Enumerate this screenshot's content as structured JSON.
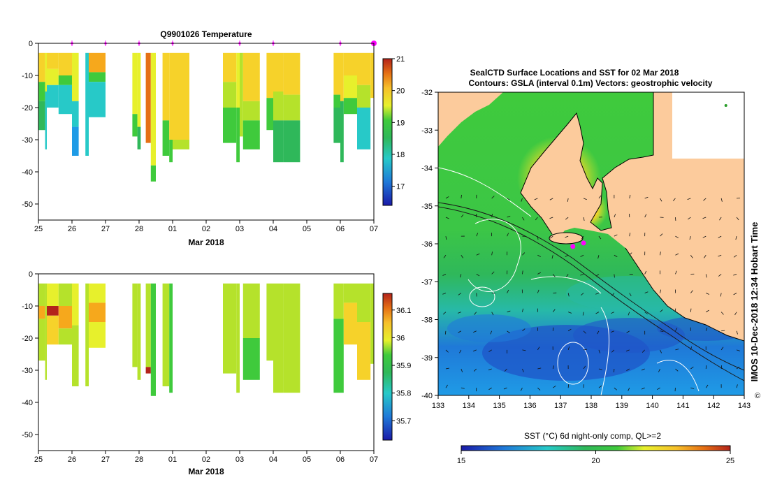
{
  "colors": {
    "land": "#fccb9c",
    "frame": "#000000",
    "marker": "#ff00ff",
    "colormap": [
      "#1a1aa8",
      "#1f55c8",
      "#1f9be6",
      "#27c9c8",
      "#2fb85a",
      "#3fca3c",
      "#b5e22b",
      "#e7f02c",
      "#f6d22a",
      "#f6a81c",
      "#e57014",
      "#b3231b"
    ]
  },
  "chart_data": [
    {
      "id": "temperature-section",
      "type": "heatmap",
      "title": "Q9901026  Temperature",
      "xlabel": "Mar 2018",
      "ylabel": "",
      "x_ticks": [
        "25",
        "26",
        "27",
        "28",
        "01",
        "02",
        "03",
        "04",
        "05",
        "06",
        "07"
      ],
      "x_range": [
        25,
        35
      ],
      "y_ticks": [
        "0",
        "-10",
        "-20",
        "-30",
        "-40",
        "-50"
      ],
      "ylim": [
        -55,
        0
      ],
      "profile_markers_day": [
        26,
        27,
        28,
        29,
        31,
        32,
        34,
        35
      ],
      "colorbar": {
        "ticks": [
          "17",
          "18",
          "19",
          "20",
          "21"
        ],
        "range": [
          16.4,
          21
        ]
      },
      "profiles": [
        {
          "x0": 25.0,
          "x1": 25.2,
          "bottom": -27,
          "layers": [
            [
              -3,
              -12,
              19.6
            ],
            [
              -12,
              -18,
              18.4
            ],
            [
              -18,
              -27,
              18.1
            ]
          ]
        },
        {
          "x0": 25.2,
          "x1": 25.25,
          "bottom": -33,
          "layers": [
            [
              -3,
              -15,
              19.3
            ],
            [
              -15,
              -33,
              17.8
            ]
          ]
        },
        {
          "x0": 25.25,
          "x1": 25.6,
          "bottom": -20,
          "layers": [
            [
              -3,
              -8,
              19.8
            ],
            [
              -8,
              -13,
              19.2
            ],
            [
              -13,
              -20,
              17.6
            ]
          ]
        },
        {
          "x0": 25.6,
          "x1": 26.0,
          "bottom": -22,
          "layers": [
            [
              -3,
              -10,
              19.7
            ],
            [
              -10,
              -13,
              18.4
            ],
            [
              -13,
              -22,
              17.5
            ]
          ]
        },
        {
          "x0": 26.0,
          "x1": 26.2,
          "bottom": -35,
          "layers": [
            [
              -3,
              -18,
              19.2
            ],
            [
              -18,
              -26,
              17.6
            ],
            [
              -26,
              -35,
              17.4
            ]
          ]
        },
        {
          "x0": 26.4,
          "x1": 26.5,
          "bottom": -35,
          "layers": [
            [
              -3,
              -35,
              17.6
            ]
          ]
        },
        {
          "x0": 26.5,
          "x1": 27.0,
          "bottom": -23,
          "layers": [
            [
              -3,
              -9,
              20.2
            ],
            [
              -9,
              -12,
              18.6
            ],
            [
              -12,
              -23,
              17.8
            ]
          ]
        },
        {
          "x0": 27.8,
          "x1": 27.95,
          "bottom": -29,
          "layers": [
            [
              -3,
              -22,
              19.3
            ],
            [
              -22,
              -29,
              18.4
            ]
          ]
        },
        {
          "x0": 27.95,
          "x1": 28.05,
          "bottom": -33,
          "layers": [
            [
              -3,
              -26,
              19.5
            ],
            [
              -26,
              -33,
              18.2
            ]
          ]
        },
        {
          "x0": 28.2,
          "x1": 28.35,
          "bottom": -31,
          "layers": [
            [
              -3,
              -31,
              20.6
            ]
          ]
        },
        {
          "x0": 28.35,
          "x1": 28.5,
          "bottom": -43,
          "layers": [
            [
              -3,
              -38,
              19.4
            ],
            [
              -38,
              -43,
              18.3
            ]
          ]
        },
        {
          "x0": 28.7,
          "x1": 28.9,
          "bottom": -35,
          "layers": [
            [
              -3,
              -24,
              19.9
            ],
            [
              -24,
              -35,
              18.4
            ]
          ]
        },
        {
          "x0": 28.9,
          "x1": 29.0,
          "bottom": -37,
          "layers": [
            [
              -3,
              -30,
              19.8
            ],
            [
              -30,
              -37,
              18.6
            ]
          ]
        },
        {
          "x0": 29.0,
          "x1": 29.5,
          "bottom": -33,
          "layers": [
            [
              -3,
              -30,
              19.8
            ],
            [
              -30,
              -33,
              18.8
            ]
          ]
        },
        {
          "x0": 30.5,
          "x1": 30.9,
          "bottom": -31,
          "layers": [
            [
              -3,
              -12,
              19.8
            ],
            [
              -12,
              -20,
              19.0
            ],
            [
              -20,
              -31,
              18.5
            ]
          ]
        },
        {
          "x0": 30.9,
          "x1": 31.0,
          "bottom": -37,
          "layers": [
            [
              -3,
              -20,
              19.4
            ],
            [
              -20,
              -37,
              18.3
            ]
          ]
        },
        {
          "x0": 31.0,
          "x1": 31.1,
          "bottom": -29,
          "layers": [
            [
              -3,
              -29,
              18.8
            ]
          ]
        },
        {
          "x0": 31.1,
          "x1": 31.6,
          "bottom": -33,
          "layers": [
            [
              -3,
              -18,
              19.9
            ],
            [
              -18,
              -24,
              18.8
            ],
            [
              -24,
              -33,
              18.3
            ]
          ]
        },
        {
          "x0": 31.8,
          "x1": 32.0,
          "bottom": -27,
          "layers": [
            [
              -3,
              -17,
              19.6
            ],
            [
              -17,
              -27,
              18.5
            ]
          ]
        },
        {
          "x0": 32.0,
          "x1": 32.3,
          "bottom": -37,
          "layers": [
            [
              -3,
              -15,
              19.8
            ],
            [
              -15,
              -24,
              18.7
            ],
            [
              -24,
              -37,
              18.1
            ]
          ]
        },
        {
          "x0": 32.3,
          "x1": 32.8,
          "bottom": -37,
          "layers": [
            [
              -3,
              -16,
              19.9
            ],
            [
              -16,
              -24,
              18.9
            ],
            [
              -24,
              -37,
              18.1
            ]
          ]
        },
        {
          "x0": 33.8,
          "x1": 34.0,
          "bottom": -31,
          "layers": [
            [
              -3,
              -16,
              19.7
            ],
            [
              -16,
              -20,
              18.6
            ],
            [
              -20,
              -31,
              18.2
            ]
          ]
        },
        {
          "x0": 34.0,
          "x1": 34.1,
          "bottom": -37,
          "layers": [
            [
              -3,
              -18,
              19.8
            ],
            [
              -18,
              -37,
              18.1
            ]
          ]
        },
        {
          "x0": 34.1,
          "x1": 34.5,
          "bottom": -22,
          "layers": [
            [
              -3,
              -10,
              19.8
            ],
            [
              -10,
              -17,
              19.2
            ],
            [
              -17,
              -22,
              18.6
            ]
          ]
        },
        {
          "x0": 34.5,
          "x1": 34.9,
          "bottom": -33,
          "layers": [
            [
              -3,
              -13,
              19.9
            ],
            [
              -13,
              -20,
              18.8
            ],
            [
              -20,
              -33,
              17.8
            ]
          ]
        },
        {
          "x0": 34.9,
          "x1": 35.0,
          "bottom": -17,
          "layers": [
            [
              -3,
              -17,
              19.9
            ]
          ]
        }
      ]
    },
    {
      "id": "salinity-section",
      "type": "heatmap",
      "title": "",
      "xlabel": "Mar 2018",
      "ylabel": "",
      "x_ticks": [
        "25",
        "26",
        "27",
        "28",
        "01",
        "02",
        "03",
        "04",
        "05",
        "06",
        "07"
      ],
      "x_range": [
        25,
        35
      ],
      "y_ticks": [
        "0",
        "-10",
        "-20",
        "-30",
        "-40",
        "-50"
      ],
      "ylim": [
        -55,
        0
      ],
      "colorbar": {
        "ticks": [
          "35.7",
          "35.8",
          "35.9",
          "36",
          "36.1"
        ],
        "range": [
          35.63,
          36.16
        ]
      },
      "profiles": [
        {
          "x0": 25.0,
          "x1": 25.2,
          "bottom": -27,
          "layers": [
            [
              -3,
              -10,
              35.92
            ],
            [
              -10,
              -14,
              36.08
            ],
            [
              -14,
              -27,
              35.9
            ]
          ]
        },
        {
          "x0": 25.2,
          "x1": 25.25,
          "bottom": -33,
          "layers": [
            [
              -3,
              -33,
              35.92
            ]
          ]
        },
        {
          "x0": 25.25,
          "x1": 25.6,
          "bottom": -22,
          "layers": [
            [
              -3,
              -10,
              35.97
            ],
            [
              -10,
              -13,
              36.15
            ],
            [
              -13,
              -22,
              36.0
            ]
          ]
        },
        {
          "x0": 25.6,
          "x1": 26.0,
          "bottom": -22,
          "layers": [
            [
              -3,
              -10,
              35.93
            ],
            [
              -10,
              -17,
              36.05
            ],
            [
              -17,
              -22,
              35.92
            ]
          ]
        },
        {
          "x0": 26.0,
          "x1": 26.2,
          "bottom": -35,
          "layers": [
            [
              -3,
              -16,
              35.95
            ],
            [
              -16,
              -35,
              35.9
            ]
          ]
        },
        {
          "x0": 26.4,
          "x1": 26.5,
          "bottom": -35,
          "layers": [
            [
              -3,
              -35,
              35.9
            ]
          ]
        },
        {
          "x0": 26.5,
          "x1": 27.0,
          "bottom": -23,
          "layers": [
            [
              -3,
              -9,
              35.95
            ],
            [
              -9,
              -15,
              36.07
            ],
            [
              -15,
              -23,
              35.98
            ]
          ]
        },
        {
          "x0": 27.8,
          "x1": 27.95,
          "bottom": -29,
          "layers": [
            [
              -3,
              -29,
              35.92
            ]
          ]
        },
        {
          "x0": 27.95,
          "x1": 28.05,
          "bottom": -33,
          "layers": [
            [
              -3,
              -33,
              35.9
            ]
          ]
        },
        {
          "x0": 28.2,
          "x1": 28.35,
          "bottom": -31,
          "layers": [
            [
              -3,
              -29,
              35.92
            ],
            [
              -29,
              -31,
              36.15
            ]
          ]
        },
        {
          "x0": 28.35,
          "x1": 28.5,
          "bottom": -38,
          "layers": [
            [
              -3,
              -38,
              35.86
            ]
          ]
        },
        {
          "x0": 28.7,
          "x1": 28.9,
          "bottom": -35,
          "layers": [
            [
              -3,
              -35,
              35.9
            ]
          ]
        },
        {
          "x0": 28.9,
          "x1": 29.0,
          "bottom": -37,
          "layers": [
            [
              -3,
              -37,
              35.88
            ]
          ]
        },
        {
          "x0": 30.5,
          "x1": 30.9,
          "bottom": -31,
          "layers": [
            [
              -3,
              -31,
              35.9
            ]
          ]
        },
        {
          "x0": 30.9,
          "x1": 31.0,
          "bottom": -37,
          "layers": [
            [
              -3,
              -37,
              35.9
            ]
          ]
        },
        {
          "x0": 31.1,
          "x1": 31.6,
          "bottom": -33,
          "layers": [
            [
              -3,
              -20,
              35.92
            ],
            [
              -20,
              -33,
              35.89
            ]
          ]
        },
        {
          "x0": 31.8,
          "x1": 32.0,
          "bottom": -27,
          "layers": [
            [
              -3,
              -27,
              35.92
            ]
          ]
        },
        {
          "x0": 32.0,
          "x1": 32.3,
          "bottom": -37,
          "layers": [
            [
              -3,
              -37,
              35.9
            ]
          ]
        },
        {
          "x0": 32.3,
          "x1": 32.8,
          "bottom": -37,
          "layers": [
            [
              -3,
              -37,
              35.9
            ]
          ]
        },
        {
          "x0": 33.8,
          "x1": 34.1,
          "bottom": -37,
          "layers": [
            [
              -3,
              -14,
              35.92
            ],
            [
              -14,
              -37,
              35.89
            ]
          ]
        },
        {
          "x0": 34.1,
          "x1": 34.5,
          "bottom": -22,
          "layers": [
            [
              -3,
              -9,
              35.93
            ],
            [
              -9,
              -22,
              36.0
            ]
          ]
        },
        {
          "x0": 34.5,
          "x1": 34.9,
          "bottom": -33,
          "layers": [
            [
              -3,
              -15,
              35.94
            ],
            [
              -15,
              -33,
              36.01
            ]
          ]
        },
        {
          "x0": 34.9,
          "x1": 35.0,
          "bottom": -28,
          "layers": [
            [
              -3,
              -28,
              35.9
            ]
          ]
        }
      ]
    },
    {
      "id": "sst-map",
      "type": "heatmap",
      "title_line1": "SealCTD Surface Locations and SST for 02 Mar 2018",
      "title_line2": "Contours: GSLA (interval 0.1m) Vectors: geostrophic velocity",
      "x_ticks": [
        "133",
        "134",
        "135",
        "136",
        "137",
        "138",
        "139",
        "140",
        "141",
        "142",
        "143"
      ],
      "xlim": [
        133,
        143
      ],
      "y_ticks": [
        "-32",
        "-33",
        "-34",
        "-35",
        "-36",
        "-37",
        "-38",
        "-39",
        "-40"
      ],
      "ylim": [
        -40,
        -32
      ],
      "colorbar_label": "SST (°C) 6d night-only comp, QL>=2",
      "colorbar_ticks": [
        "15",
        "20",
        "25"
      ],
      "colorbar_range": [
        15,
        25
      ],
      "side_label": "IMOS 10-Dec-2018 12:34 Hobart Time",
      "copyright_symbol": "©",
      "seal_locations": [
        [
          137.4,
          -36.07
        ],
        [
          137.75,
          -35.98
        ],
        [
          142.4,
          -32.35
        ]
      ]
    }
  ]
}
